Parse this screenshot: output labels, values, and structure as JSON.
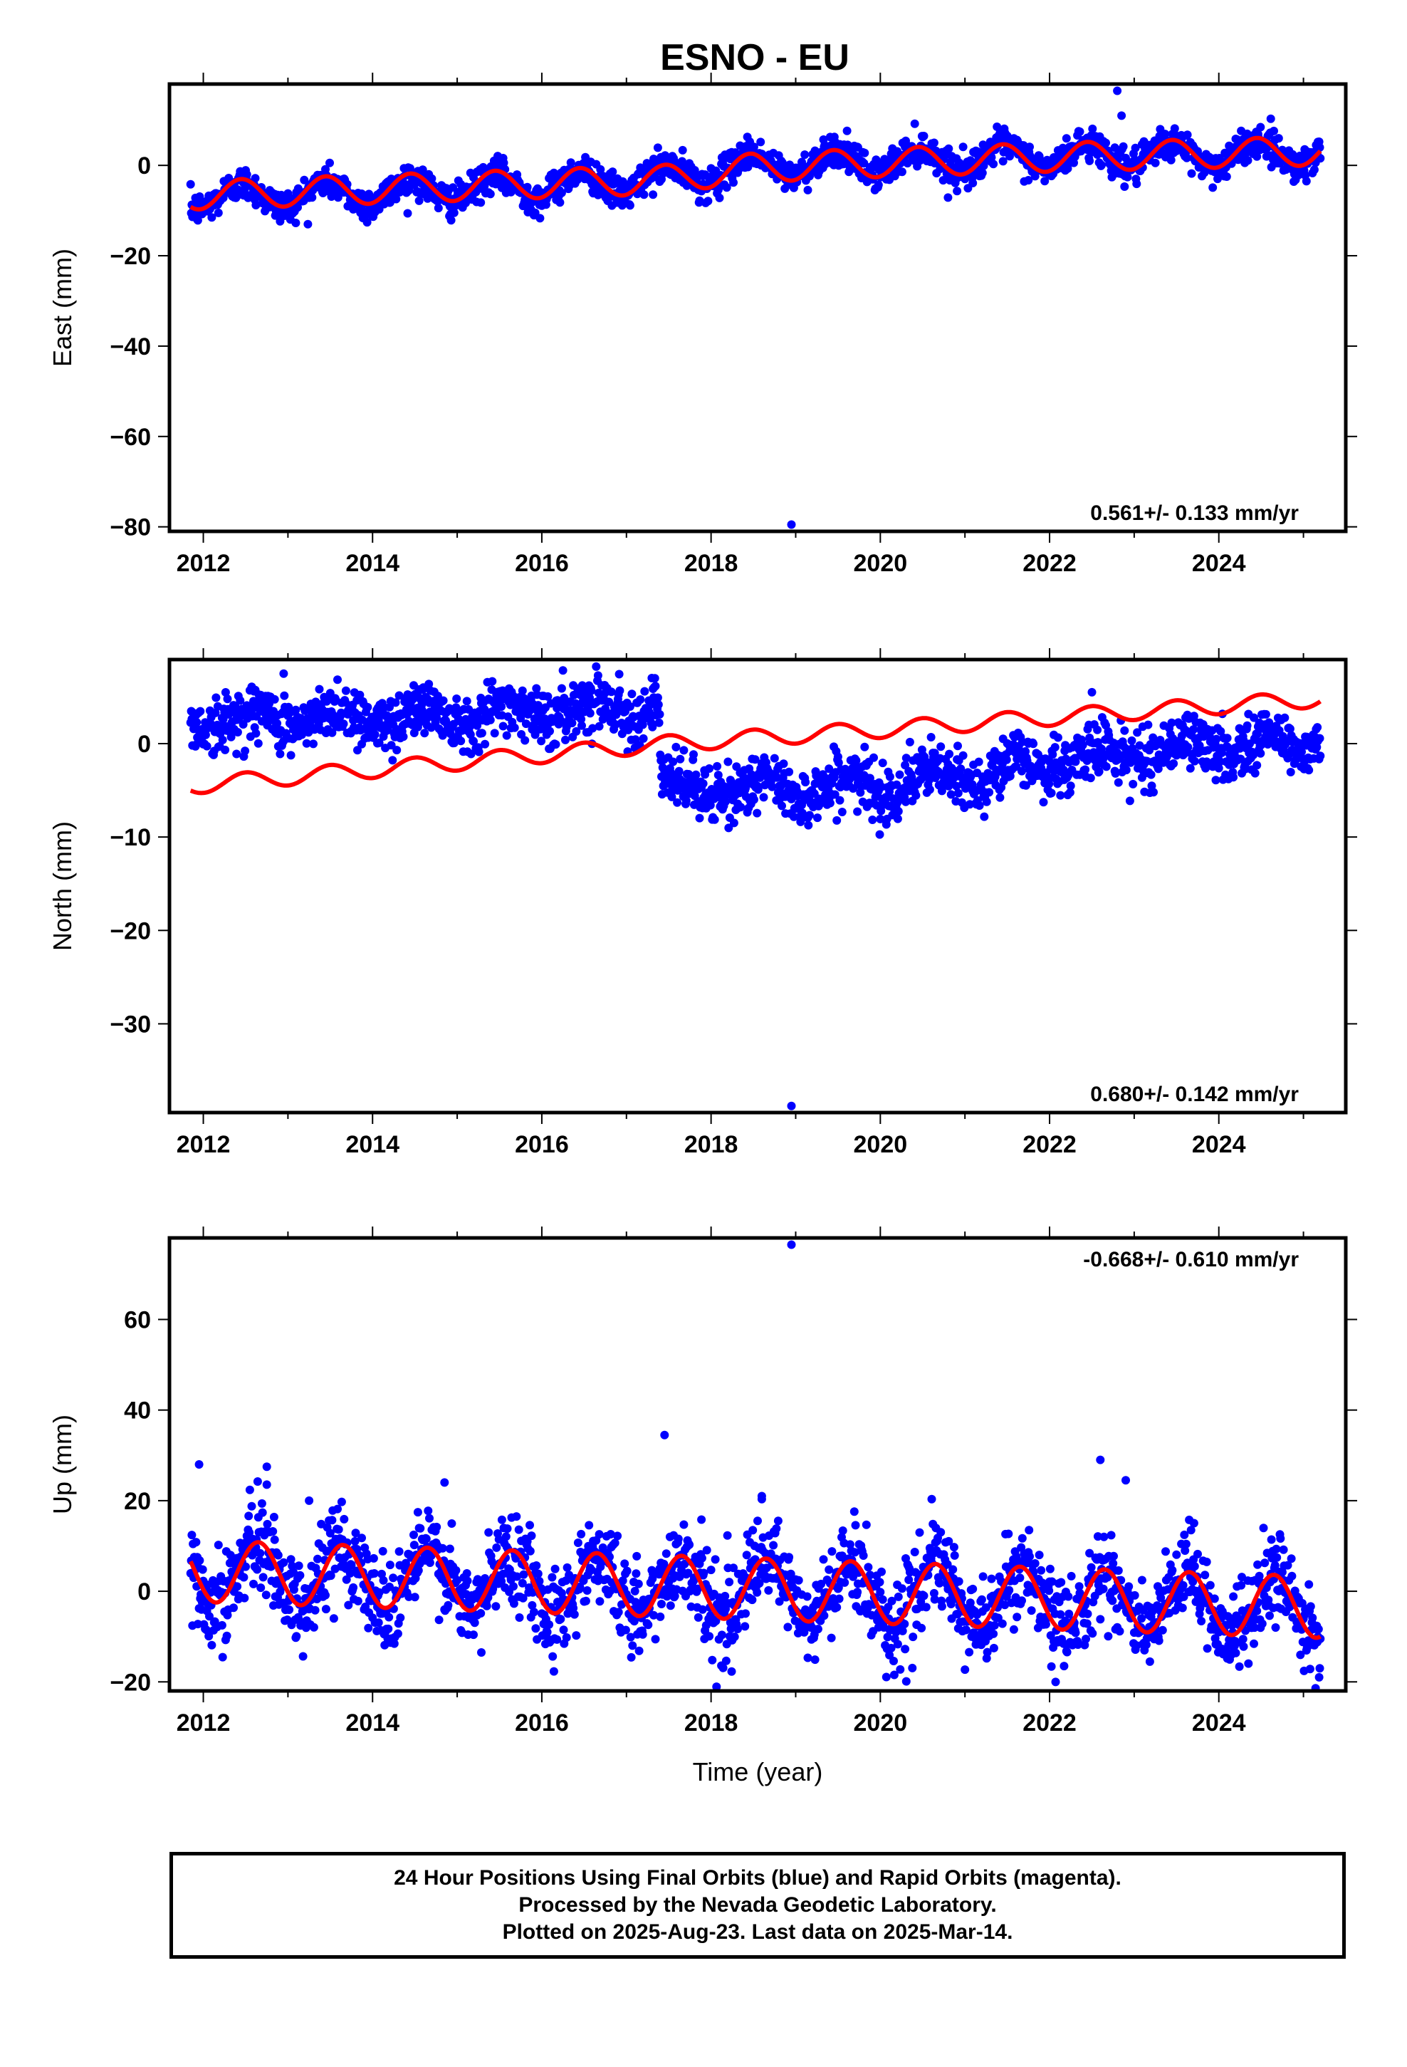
{
  "title": "ESNO - EU",
  "colors": {
    "data": "#0000ff",
    "model": "#ff0000",
    "frame": "#000000"
  },
  "footer": {
    "line1": "24 Hour Positions Using Final Orbits (blue) and Rapid Orbits (magenta).",
    "line2": "Processed by the Nevada Geodetic Laboratory.",
    "line3": "Plotted on 2025-Aug-23. Last data on 2025-Mar-14."
  },
  "chart_data": [
    {
      "type": "scatter",
      "ylabel": "East (mm)",
      "xlabel": "",
      "rate_label": "0.561+/- 0.133 mm/yr",
      "xlim": [
        2011.6,
        2025.5
      ],
      "ylim": [
        -81,
        18
      ],
      "xticks": [
        2012,
        2014,
        2016,
        2018,
        2020,
        2022,
        2024
      ],
      "xtick_labels": [
        "2012",
        "2014",
        "2016",
        "2018",
        "2020",
        "2022",
        "2024"
      ],
      "yticks": [
        0,
        -20,
        -40,
        -60,
        -80
      ],
      "ytick_labels": [
        "0",
        "−20",
        "−40",
        "−60",
        "−80"
      ],
      "data_range": [
        2011.85,
        2025.2
      ],
      "series": [
        {
          "kind": "observations",
          "trend": [
            [
              2011.85,
              -7
            ],
            [
              2014.0,
              -6
            ],
            [
              2016.0,
              -4.5
            ],
            [
              2017.4,
              -3
            ],
            [
              2018.5,
              0
            ],
            [
              2020.0,
              1
            ],
            [
              2022.0,
              2
            ],
            [
              2024.0,
              2.5
            ],
            [
              2025.2,
              3
            ]
          ],
          "seasonal_amplitude": 2.7,
          "seasonal_peak": 0.45,
          "scatter": 1.8
        },
        {
          "kind": "model",
          "trend": [
            [
              2011.85,
              -6.6
            ],
            [
              2017.4,
              -3.2
            ],
            [
              2018.5,
              -0.5
            ],
            [
              2020.0,
              0.6
            ],
            [
              2022.0,
              1.8
            ],
            [
              2025.2,
              3.2
            ]
          ],
          "seasonal_amplitude": 3.2,
          "seasonal_peak": 0.45
        }
      ],
      "outliers": [
        [
          2022.8,
          16.5
        ],
        [
          2022.85,
          11
        ],
        [
          2018.95,
          -79.5
        ]
      ]
    },
    {
      "type": "scatter",
      "ylabel": "North (mm)",
      "xlabel": "",
      "rate_label": "0.680+/- 0.142 mm/yr",
      "xlim": [
        2011.6,
        2025.5
      ],
      "ylim": [
        -39.5,
        9
      ],
      "xticks": [
        2012,
        2014,
        2016,
        2018,
        2020,
        2022,
        2024
      ],
      "xtick_labels": [
        "2012",
        "2014",
        "2016",
        "2018",
        "2020",
        "2022",
        "2024"
      ],
      "yticks": [
        0,
        -10,
        -20,
        -30
      ],
      "ytick_labels": [
        "0",
        "−10",
        "−20",
        "−30"
      ],
      "data_range": [
        2011.85,
        2025.2
      ],
      "series": [
        {
          "kind": "observations",
          "trend": [
            [
              2011.85,
              2.5
            ],
            [
              2014.0,
              2.8
            ],
            [
              2016.0,
              3.5
            ],
            [
              2017.39,
              4.2
            ],
            [
              2017.41,
              -5
            ],
            [
              2019.0,
              -4.8
            ],
            [
              2020.0,
              -4.5
            ],
            [
              2021.0,
              -3.5
            ],
            [
              2022.0,
              -2
            ],
            [
              2023.0,
              -1
            ],
            [
              2024.0,
              -0.2
            ],
            [
              2025.2,
              0
            ]
          ],
          "seasonal_amplitude": 1.0,
          "seasonal_peak": 0.6,
          "scatter": 1.5
        },
        {
          "kind": "model",
          "trend": [
            [
              2011.85,
              -4.5
            ],
            [
              2017.5,
              0
            ],
            [
              2020.0,
              1.5
            ],
            [
              2022.0,
              2.8
            ],
            [
              2025.2,
              4.8
            ]
          ],
          "seasonal_amplitude": 0.9,
          "seasonal_peak": 0.5
        }
      ],
      "outliers": [
        [
          2018.95,
          -38.8
        ],
        [
          2022.5,
          5.5
        ],
        [
          2012.95,
          7.5
        ]
      ]
    },
    {
      "type": "scatter",
      "ylabel": "Up (mm)",
      "xlabel": "Time (year)",
      "rate_label": "-0.668+/- 0.610 mm/yr",
      "xlim": [
        2011.6,
        2025.5
      ],
      "ylim": [
        -22,
        78
      ],
      "xticks": [
        2012,
        2014,
        2016,
        2018,
        2020,
        2022,
        2024
      ],
      "xtick_labels": [
        "2012",
        "2014",
        "2016",
        "2018",
        "2020",
        "2022",
        "2024"
      ],
      "yticks": [
        60,
        40,
        20,
        0,
        -20
      ],
      "ytick_labels": [
        "60",
        "40",
        "20",
        "0",
        "−20"
      ],
      "data_range": [
        2011.85,
        2025.2
      ],
      "series": [
        {
          "kind": "observations",
          "trend": [
            [
              2011.85,
              4.5
            ],
            [
              2025.2,
              -4
            ]
          ],
          "seasonal_amplitude": 6.5,
          "seasonal_peak": 0.65,
          "scatter": 5
        },
        {
          "kind": "model",
          "trend": [
            [
              2011.85,
              4.5
            ],
            [
              2025.2,
              -3.5
            ]
          ],
          "seasonal_amplitude": 6.8,
          "seasonal_peak": 0.65
        }
      ],
      "outliers": [
        [
          2018.95,
          76.5
        ],
        [
          2017.45,
          34.5
        ],
        [
          2022.6,
          29
        ],
        [
          2011.95,
          28
        ],
        [
          2012.75,
          27.5
        ],
        [
          2014.85,
          24
        ],
        [
          2022.9,
          24.5
        ],
        [
          2013.25,
          20
        ],
        [
          2018.6,
          21
        ]
      ]
    }
  ]
}
